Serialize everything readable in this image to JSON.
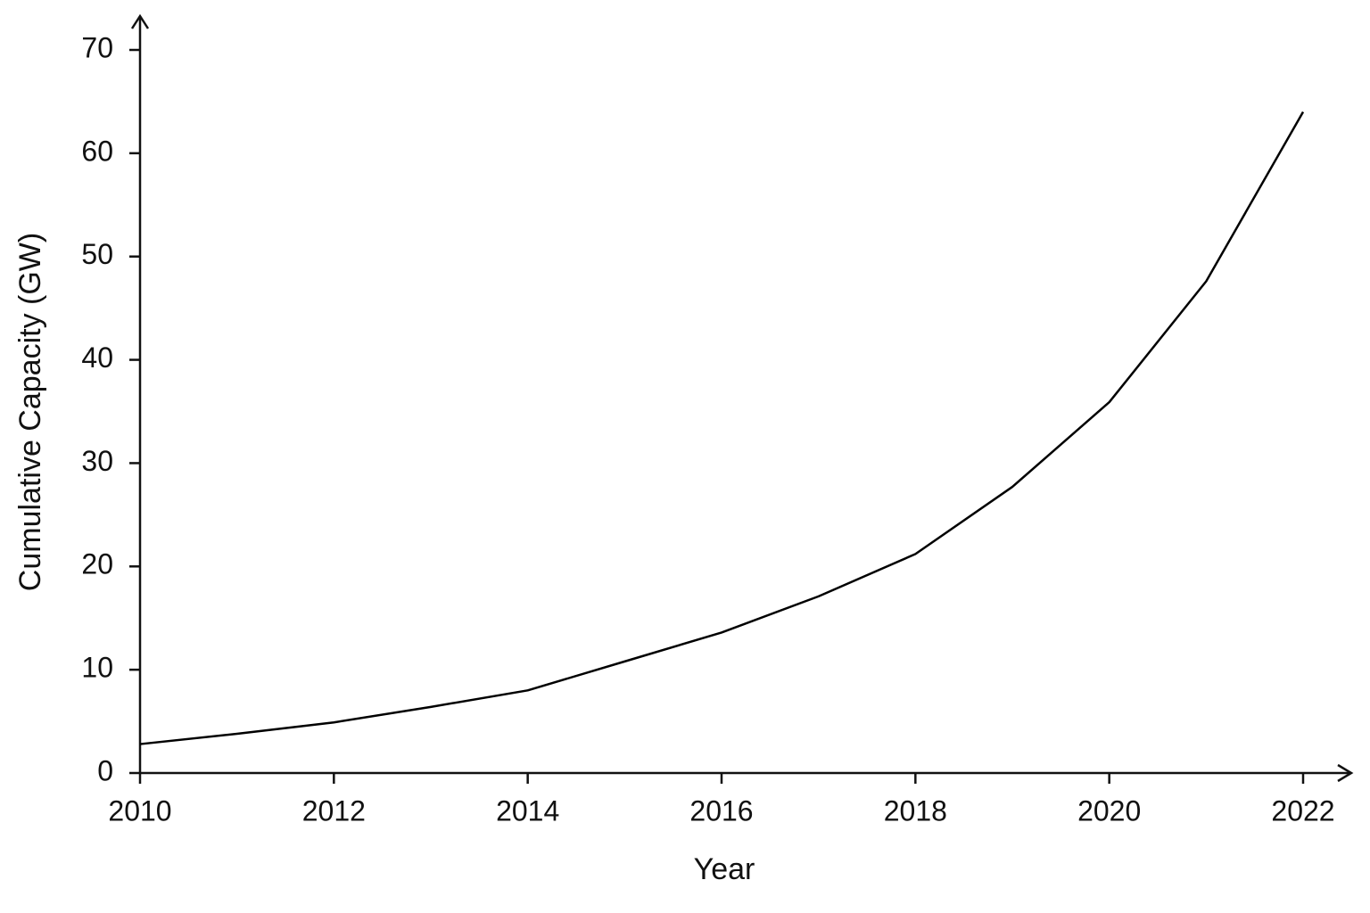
{
  "chart_data": {
    "type": "line",
    "x_label": "Year",
    "y_label": "Cumulative Capacity (GW)",
    "x": [
      2010,
      2011,
      2012,
      2013,
      2014,
      2015,
      2016,
      2017,
      2018,
      2019,
      2020,
      2021,
      2022
    ],
    "series": [
      {
        "color": "#000000",
        "values": [
          2.8,
          3.8,
          4.9,
          6.4,
          8.0,
          10.8,
          13.6,
          17.1,
          21.2,
          27.7,
          35.9,
          47.6,
          64
        ]
      }
    ],
    "xlim": [
      2010,
      2022
    ],
    "xticks": [
      2010,
      2012,
      2014,
      2016,
      2018,
      2020,
      2022
    ],
    "ylim": [
      0,
      70
    ],
    "yticks": [
      0,
      10,
      20,
      30,
      40,
      50,
      60,
      70
    ],
    "grid": false
  }
}
